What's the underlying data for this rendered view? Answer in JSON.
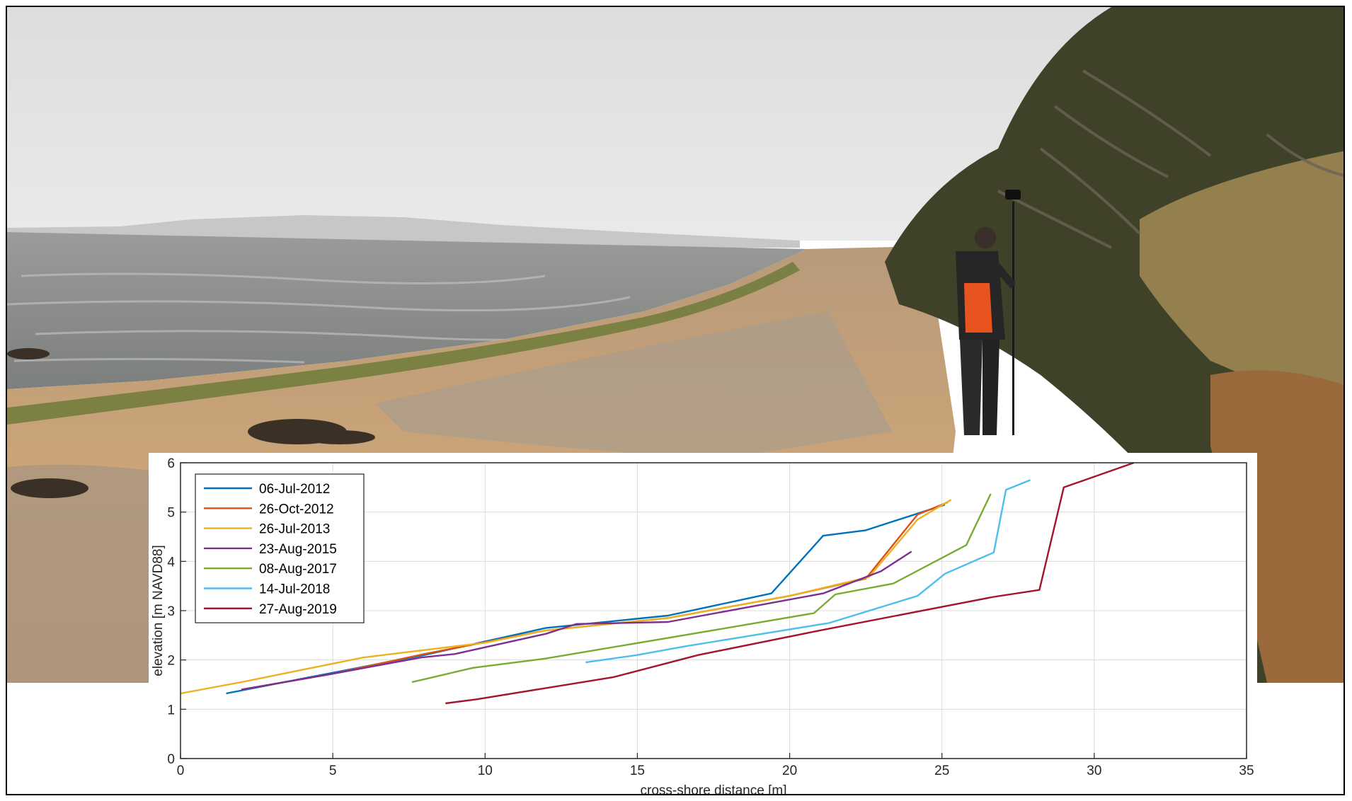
{
  "photo": {
    "scene": "coastal-beach-survey",
    "colors": {
      "sky": "#e3e4e4",
      "water": "#8a8d8b",
      "sand": "#c9a274",
      "vegetation": "#4b4a30",
      "jacket": "#e8541f"
    }
  },
  "chart_data": {
    "type": "line",
    "title": "",
    "xlabel": "cross-shore distance [m]",
    "ylabel": "elevation [m NAVD88]",
    "xlim": [
      0,
      35
    ],
    "ylim": [
      0,
      6
    ],
    "xticks": [
      0,
      5,
      10,
      15,
      20,
      25,
      30,
      35
    ],
    "yticks": [
      0,
      1,
      2,
      3,
      4,
      5,
      6
    ],
    "grid": true,
    "legend_position": "top-left",
    "series": [
      {
        "name": "06-Jul-2012",
        "color": "#0072BD",
        "x": [
          1.5,
          4,
          8,
          12,
          16,
          19.4,
          21.1,
          22.5,
          25.1
        ],
        "y": [
          1.32,
          1.62,
          2.1,
          2.65,
          2.9,
          3.35,
          4.52,
          4.63,
          5.15
        ]
      },
      {
        "name": "26-Oct-2012",
        "color": "#D95319",
        "x": [
          2,
          5,
          8,
          12,
          16,
          20,
          22.5,
          24.2,
          25.2
        ],
        "y": [
          1.4,
          1.72,
          2.12,
          2.6,
          2.85,
          3.3,
          3.65,
          4.95,
          5.2
        ]
      },
      {
        "name": "26-Jul-2013",
        "color": "#EDB120",
        "x": [
          0,
          2,
          4,
          6,
          8,
          10,
          12,
          16,
          20,
          22.6,
          24.2,
          25.3
        ],
        "y": [
          1.32,
          1.55,
          1.8,
          2.05,
          2.2,
          2.35,
          2.6,
          2.85,
          3.3,
          3.68,
          4.85,
          5.25
        ]
      },
      {
        "name": "23-Aug-2015",
        "color": "#7E2F8E",
        "x": [
          2,
          5,
          7.9,
          9,
          12,
          13,
          16,
          21.1,
          23,
          24
        ],
        "y": [
          1.4,
          1.72,
          2.05,
          2.12,
          2.53,
          2.73,
          2.77,
          3.35,
          3.8,
          4.2
        ]
      },
      {
        "name": "08-Aug-2017",
        "color": "#77AC30",
        "x": [
          7.6,
          9.6,
          12,
          17,
          20.8,
          21.5,
          23.4,
          25.8,
          26.6
        ],
        "y": [
          1.55,
          1.84,
          2.03,
          2.55,
          2.95,
          3.33,
          3.55,
          4.33,
          5.37
        ]
      },
      {
        "name": "14-Jul-2018",
        "color": "#4DBEEE",
        "x": [
          13.3,
          15,
          16.5,
          21.3,
          24.2,
          25.1,
          26.7,
          27.1,
          27.9
        ],
        "y": [
          1.95,
          2.1,
          2.27,
          2.75,
          3.3,
          3.75,
          4.18,
          5.45,
          5.65
        ]
      },
      {
        "name": "27-Aug-2019",
        "color": "#A2142F",
        "x": [
          8.7,
          9.7,
          14.2,
          17,
          21,
          26.7,
          28.2,
          29,
          31.3
        ],
        "y": [
          1.12,
          1.2,
          1.65,
          2.1,
          2.6,
          3.28,
          3.42,
          5.5,
          6.0
        ]
      }
    ]
  }
}
